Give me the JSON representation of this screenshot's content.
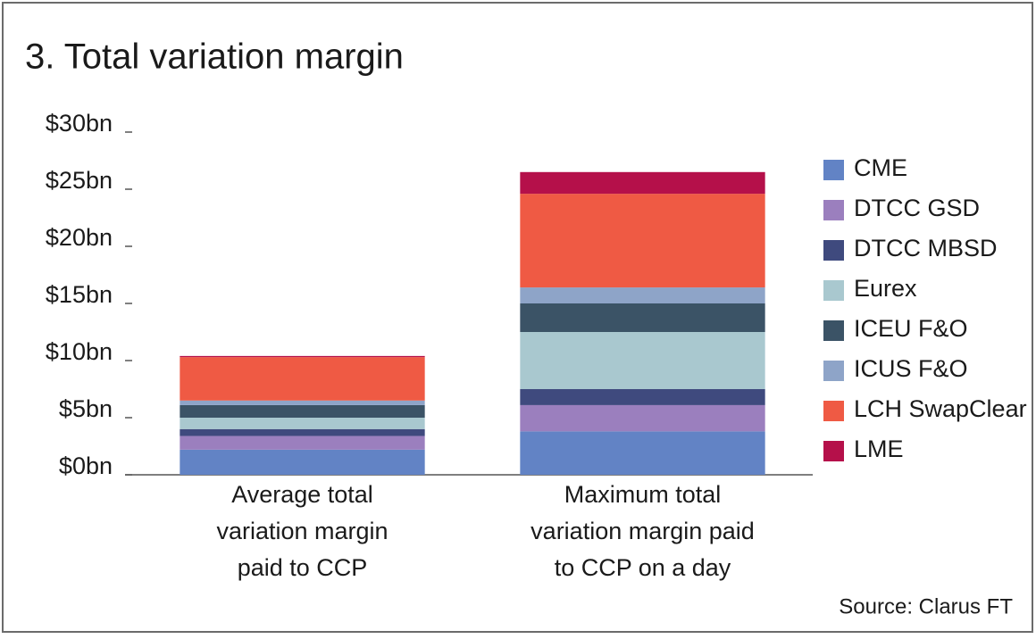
{
  "chart_data": {
    "type": "stacked_bar",
    "title": "3. Total variation margin",
    "categories": [
      "Average total variation margin paid to CCP",
      "Maximum total variation margin paid to CCP on a day"
    ],
    "series": [
      {
        "name": "CME",
        "color": "#6283c5",
        "values": [
          2.2,
          3.8
        ]
      },
      {
        "name": "DTCC GSD",
        "color": "#9b7fbe",
        "values": [
          1.2,
          2.3
        ]
      },
      {
        "name": "DTCC MBSD",
        "color": "#3f4a7e",
        "values": [
          0.6,
          1.4
        ]
      },
      {
        "name": "Eurex",
        "color": "#a9c8cf",
        "values": [
          1.0,
          5.0
        ]
      },
      {
        "name": "ICEU F&O",
        "color": "#3b5366",
        "values": [
          1.1,
          2.5
        ]
      },
      {
        "name": "ICUS F&O",
        "color": "#8ea4c8",
        "values": [
          0.4,
          1.4
        ]
      },
      {
        "name": "LCH SwapClear",
        "color": "#ef5a44",
        "values": [
          3.8,
          8.2
        ]
      },
      {
        "name": "LME",
        "color": "#b5104a",
        "values": [
          0.1,
          1.9
        ]
      }
    ],
    "ylim": [
      0,
      30
    ],
    "yticks": [
      {
        "value": 0,
        "label": "$0bn"
      },
      {
        "value": 5,
        "label": "$5bn"
      },
      {
        "value": 10,
        "label": "$10bn"
      },
      {
        "value": 15,
        "label": "$15bn"
      },
      {
        "value": 20,
        "label": "$20bn"
      },
      {
        "value": 25,
        "label": "$25bn"
      },
      {
        "value": 30,
        "label": "$30bn"
      }
    ],
    "legend": "right",
    "source": "Source: Clarus FT"
  }
}
